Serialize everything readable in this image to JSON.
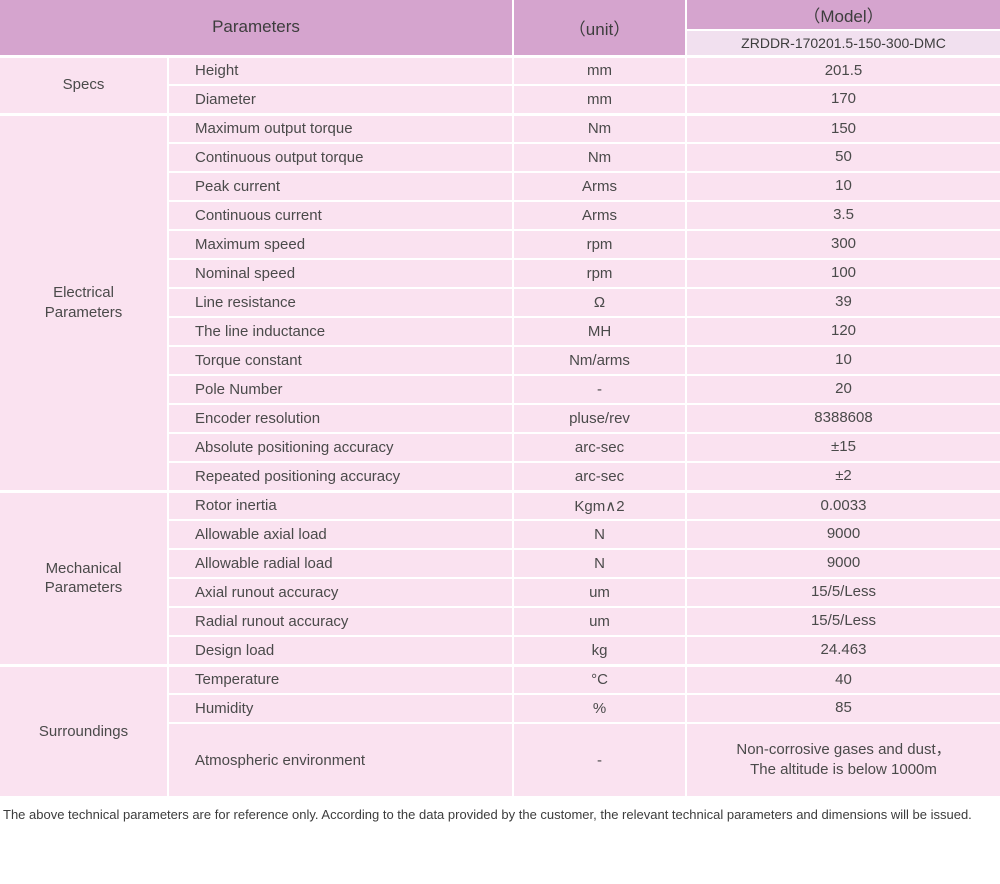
{
  "header": {
    "parameters_label": "Parameters",
    "unit_label": "（unit）",
    "model_label": "（Model）",
    "model_value": "ZRDDR-170201.5-150-300-DMC"
  },
  "groups": [
    {
      "name": "Specs",
      "rows": [
        {
          "param": "Height",
          "unit": "mm",
          "value": "201.5"
        },
        {
          "param": "Diameter",
          "unit": "mm",
          "value": "170"
        }
      ]
    },
    {
      "name": "Electrical Parameters",
      "rows": [
        {
          "param": "Maximum output torque",
          "unit": "Nm",
          "value": "150"
        },
        {
          "param": "Continuous output torque",
          "unit": "Nm",
          "value": "50"
        },
        {
          "param": "Peak current",
          "unit": "Arms",
          "value": "10"
        },
        {
          "param": "Continuous current",
          "unit": "Arms",
          "value": "3.5"
        },
        {
          "param": "Maximum speed",
          "unit": "rpm",
          "value": "300"
        },
        {
          "param": "Nominal speed",
          "unit": "rpm",
          "value": "100"
        },
        {
          "param": "Line resistance",
          "unit": "Ω",
          "value": "39"
        },
        {
          "param": "The line inductance",
          "unit": "MH",
          "value": "120"
        },
        {
          "param": "Torque constant",
          "unit": "Nm/arms",
          "value": "10"
        },
        {
          "param": "Pole Number",
          "unit": "-",
          "value": "20"
        },
        {
          "param": "Encoder resolution",
          "unit": "pluse/rev",
          "value": "8388608"
        },
        {
          "param": "Absolute positioning accuracy",
          "unit": "arc-sec",
          "value": "±15"
        },
        {
          "param": "Repeated positioning accuracy",
          "unit": "arc-sec",
          "value": "±2"
        }
      ]
    },
    {
      "name": "Mechanical Parameters",
      "rows": [
        {
          "param": "Rotor inertia",
          "unit": "Kgm∧2",
          "value": "0.0033"
        },
        {
          "param": "Allowable axial load",
          "unit": "N",
          "value": "9000"
        },
        {
          "param": "Allowable radial load",
          "unit": "N",
          "value": "9000"
        },
        {
          "param": "Axial runout accuracy",
          "unit": "um",
          "value": "15/5/Less"
        },
        {
          "param": "Radial runout accuracy",
          "unit": "um",
          "value": "15/5/Less"
        },
        {
          "param": "Design load",
          "unit": "kg",
          "value": "24.463"
        }
      ]
    },
    {
      "name": "Surroundings",
      "rows": [
        {
          "param": "Temperature",
          "unit": "°C",
          "value": "40"
        },
        {
          "param": "Humidity",
          "unit": "%",
          "value": "85"
        },
        {
          "param": "Atmospheric environment",
          "unit": "-",
          "value": "Non-corrosive gases and dust，\nThe altitude is below 1000m"
        }
      ]
    }
  ],
  "footer": "The above technical parameters are for reference only. According to the data provided by the customer, the relevant technical parameters and dimensions will be issued.",
  "colors": {
    "header-bg": "#d5a4ce",
    "model-value-bg": "#f1e0ef",
    "cell-bg": "#fae2f0",
    "text": "#4a4a4a",
    "header-text": "#3d3d3d",
    "border": "#ffffff"
  }
}
